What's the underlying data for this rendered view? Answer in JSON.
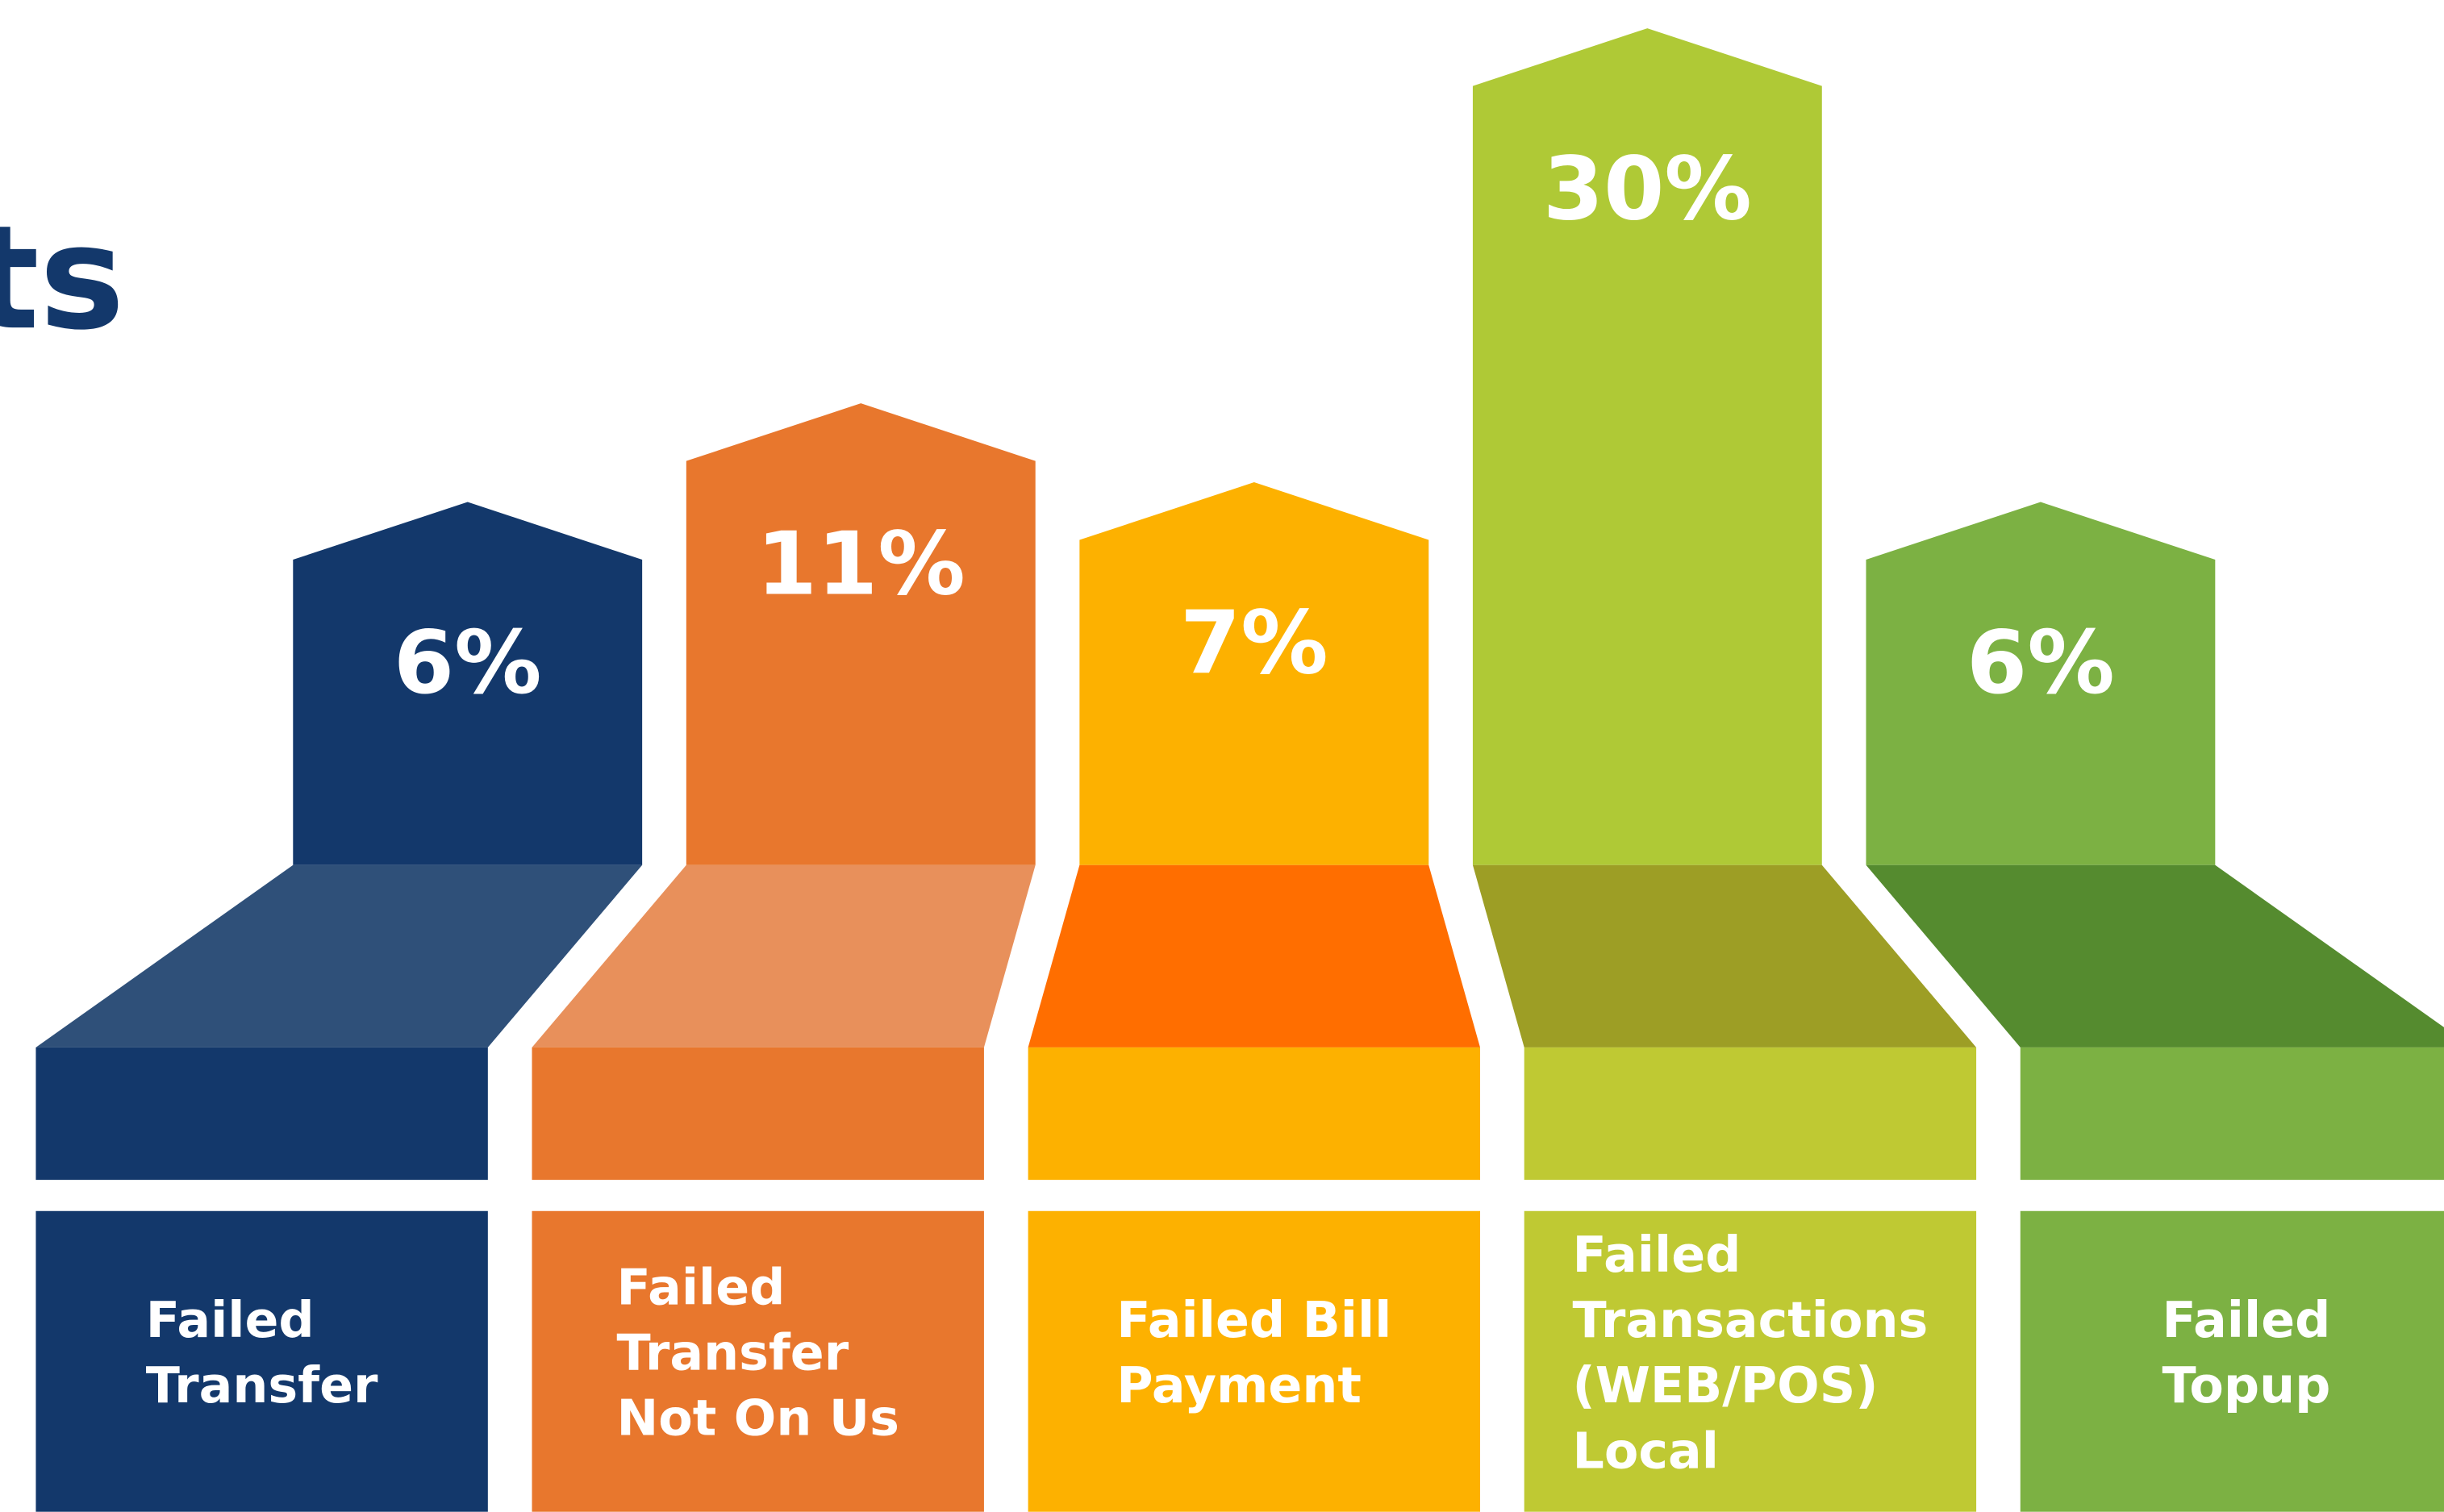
{
  "chart_data": {
    "type": "pillar",
    "title": "ts",
    "categories": [
      [
        "Failed",
        "Transfer"
      ],
      [
        "Failed",
        "Transfer",
        "Not On Us"
      ],
      [
        "Failed Bill",
        "Payment"
      ],
      [
        "Failed",
        "Transactions",
        "(WEB/POS)",
        "Local"
      ],
      [
        "Failed",
        "Topup"
      ]
    ],
    "values": [
      6,
      11,
      7,
      30,
      6
    ],
    "value_labels": [
      "6%",
      "11%",
      "7%",
      "30%",
      "6%"
    ],
    "colors": [
      "#13386b",
      "#e8772d",
      "#fdb100",
      "#afc936",
      "#7cb143"
    ],
    "platform_colors": [
      "#2f5079",
      "#e8905b",
      "#ff6e00",
      "#9d9e25",
      "#558b2f"
    ],
    "front_colors": [
      "#13386b",
      "#e8772d",
      "#fdb100",
      "#bfc933",
      "#7cb143"
    ]
  }
}
